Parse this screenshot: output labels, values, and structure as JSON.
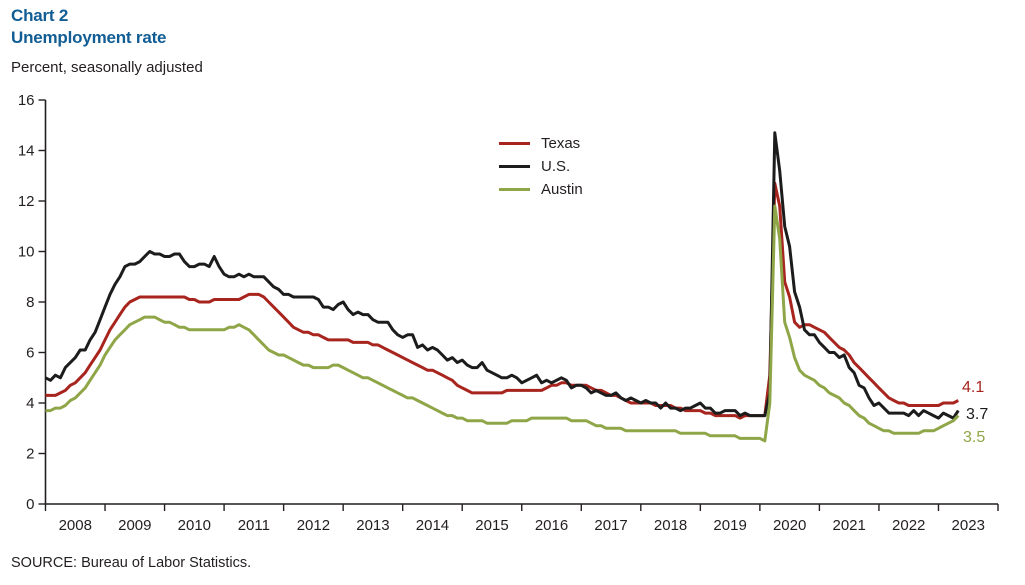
{
  "header": {
    "chart_number": "Chart 2",
    "title": "Unemployment rate",
    "subtitle": "Percent, seasonally adjusted"
  },
  "footer": {
    "source": "SOURCE: Bureau of Labor Statistics."
  },
  "colors": {
    "title_blue": "#115d94",
    "axis": "#231f20",
    "texas_red": "#a8241e",
    "us_black": "#1c1c1c",
    "austin_green": "#8fa648"
  },
  "chart_data": {
    "type": "line",
    "title": "Unemployment rate",
    "ylabel": "Percent, seasonally adjusted",
    "xlabel": "",
    "ylim": [
      0,
      16
    ],
    "y_ticks": [
      0,
      2,
      4,
      6,
      8,
      10,
      12,
      14,
      16
    ],
    "x_tick_years": [
      2008,
      2009,
      2010,
      2011,
      2012,
      2013,
      2014,
      2015,
      2016,
      2017,
      2018,
      2019,
      2020,
      2021,
      2022,
      2023
    ],
    "x_start": "2008-01",
    "x_frequency": "monthly",
    "grid": false,
    "legend_position": "inside-top-center",
    "series": [
      {
        "name": "Texas",
        "color": "#a8241e",
        "end_label": "4.1",
        "values": [
          4.3,
          4.3,
          4.3,
          4.4,
          4.5,
          4.7,
          4.8,
          5.0,
          5.2,
          5.5,
          5.8,
          6.1,
          6.5,
          6.9,
          7.2,
          7.5,
          7.8,
          8.0,
          8.1,
          8.2,
          8.2,
          8.2,
          8.2,
          8.2,
          8.2,
          8.2,
          8.2,
          8.2,
          8.2,
          8.1,
          8.1,
          8.0,
          8.0,
          8.0,
          8.1,
          8.1,
          8.1,
          8.1,
          8.1,
          8.1,
          8.2,
          8.3,
          8.3,
          8.3,
          8.2,
          8.0,
          7.8,
          7.6,
          7.4,
          7.2,
          7.0,
          6.9,
          6.8,
          6.8,
          6.7,
          6.7,
          6.6,
          6.5,
          6.5,
          6.5,
          6.5,
          6.5,
          6.4,
          6.4,
          6.4,
          6.4,
          6.3,
          6.3,
          6.2,
          6.1,
          6.0,
          5.9,
          5.8,
          5.7,
          5.6,
          5.5,
          5.4,
          5.3,
          5.3,
          5.2,
          5.1,
          5.0,
          4.9,
          4.7,
          4.6,
          4.5,
          4.4,
          4.4,
          4.4,
          4.4,
          4.4,
          4.4,
          4.4,
          4.5,
          4.5,
          4.5,
          4.5,
          4.5,
          4.5,
          4.5,
          4.5,
          4.6,
          4.7,
          4.7,
          4.8,
          4.8,
          4.7,
          4.7,
          4.7,
          4.7,
          4.6,
          4.5,
          4.5,
          4.4,
          4.3,
          4.3,
          4.2,
          4.1,
          4.0,
          4.0,
          4.0,
          4.0,
          4.0,
          3.9,
          3.9,
          3.9,
          3.9,
          3.8,
          3.8,
          3.7,
          3.7,
          3.7,
          3.7,
          3.6,
          3.6,
          3.5,
          3.5,
          3.5,
          3.5,
          3.5,
          3.4,
          3.5,
          3.5,
          3.5,
          3.5,
          3.5,
          5.1,
          12.7,
          11.8,
          8.8,
          8.2,
          7.2,
          7.0,
          7.1,
          7.1,
          7.0,
          6.9,
          6.8,
          6.6,
          6.4,
          6.2,
          6.1,
          5.9,
          5.6,
          5.4,
          5.2,
          5.0,
          4.8,
          4.6,
          4.4,
          4.2,
          4.1,
          4.0,
          4.0,
          3.9,
          3.9,
          3.9,
          3.9,
          3.9,
          3.9,
          3.9,
          4.0,
          4.0,
          4.0,
          4.1
        ]
      },
      {
        "name": "U.S.",
        "color": "#1c1c1c",
        "end_label": "3.7",
        "values": [
          5.0,
          4.9,
          5.1,
          5.0,
          5.4,
          5.6,
          5.8,
          6.1,
          6.1,
          6.5,
          6.8,
          7.3,
          7.8,
          8.3,
          8.7,
          9.0,
          9.4,
          9.5,
          9.5,
          9.6,
          9.8,
          10.0,
          9.9,
          9.9,
          9.8,
          9.8,
          9.9,
          9.9,
          9.6,
          9.4,
          9.4,
          9.5,
          9.5,
          9.4,
          9.8,
          9.4,
          9.1,
          9.0,
          9.0,
          9.1,
          9.0,
          9.1,
          9.0,
          9.0,
          9.0,
          8.8,
          8.6,
          8.5,
          8.3,
          8.3,
          8.2,
          8.2,
          8.2,
          8.2,
          8.2,
          8.1,
          7.8,
          7.8,
          7.7,
          7.9,
          8.0,
          7.7,
          7.5,
          7.6,
          7.5,
          7.5,
          7.3,
          7.2,
          7.2,
          7.2,
          6.9,
          6.7,
          6.6,
          6.7,
          6.7,
          6.2,
          6.3,
          6.1,
          6.2,
          6.1,
          5.9,
          5.7,
          5.8,
          5.6,
          5.7,
          5.5,
          5.4,
          5.4,
          5.6,
          5.3,
          5.2,
          5.1,
          5.0,
          5.0,
          5.1,
          5.0,
          4.8,
          4.9,
          5.0,
          5.1,
          4.8,
          4.9,
          4.8,
          4.9,
          5.0,
          4.9,
          4.6,
          4.7,
          4.7,
          4.6,
          4.4,
          4.5,
          4.4,
          4.3,
          4.3,
          4.4,
          4.2,
          4.1,
          4.2,
          4.1,
          4.0,
          4.1,
          4.0,
          4.0,
          3.8,
          4.0,
          3.8,
          3.8,
          3.7,
          3.8,
          3.8,
          3.9,
          4.0,
          3.8,
          3.8,
          3.6,
          3.6,
          3.7,
          3.7,
          3.7,
          3.5,
          3.6,
          3.5,
          3.5,
          3.5,
          3.5,
          4.4,
          14.7,
          13.2,
          11.0,
          10.2,
          8.4,
          7.8,
          6.9,
          6.7,
          6.7,
          6.4,
          6.2,
          6.0,
          6.0,
          5.8,
          5.9,
          5.4,
          5.2,
          4.7,
          4.6,
          4.2,
          3.9,
          4.0,
          3.8,
          3.6,
          3.6,
          3.6,
          3.6,
          3.5,
          3.7,
          3.5,
          3.7,
          3.6,
          3.5,
          3.4,
          3.6,
          3.5,
          3.4,
          3.7
        ]
      },
      {
        "name": "Austin",
        "color": "#8fa648",
        "end_label": "3.5",
        "values": [
          3.7,
          3.7,
          3.8,
          3.8,
          3.9,
          4.1,
          4.2,
          4.4,
          4.6,
          4.9,
          5.2,
          5.5,
          5.9,
          6.2,
          6.5,
          6.7,
          6.9,
          7.1,
          7.2,
          7.3,
          7.4,
          7.4,
          7.4,
          7.3,
          7.2,
          7.2,
          7.1,
          7.0,
          7.0,
          6.9,
          6.9,
          6.9,
          6.9,
          6.9,
          6.9,
          6.9,
          6.9,
          7.0,
          7.0,
          7.1,
          7.0,
          6.9,
          6.7,
          6.5,
          6.3,
          6.1,
          6.0,
          5.9,
          5.9,
          5.8,
          5.7,
          5.6,
          5.5,
          5.5,
          5.4,
          5.4,
          5.4,
          5.4,
          5.5,
          5.5,
          5.4,
          5.3,
          5.2,
          5.1,
          5.0,
          5.0,
          4.9,
          4.8,
          4.7,
          4.6,
          4.5,
          4.4,
          4.3,
          4.2,
          4.2,
          4.1,
          4.0,
          3.9,
          3.8,
          3.7,
          3.6,
          3.5,
          3.5,
          3.4,
          3.4,
          3.3,
          3.3,
          3.3,
          3.3,
          3.2,
          3.2,
          3.2,
          3.2,
          3.2,
          3.3,
          3.3,
          3.3,
          3.3,
          3.4,
          3.4,
          3.4,
          3.4,
          3.4,
          3.4,
          3.4,
          3.4,
          3.3,
          3.3,
          3.3,
          3.3,
          3.2,
          3.1,
          3.1,
          3.0,
          3.0,
          3.0,
          3.0,
          2.9,
          2.9,
          2.9,
          2.9,
          2.9,
          2.9,
          2.9,
          2.9,
          2.9,
          2.9,
          2.9,
          2.8,
          2.8,
          2.8,
          2.8,
          2.8,
          2.8,
          2.7,
          2.7,
          2.7,
          2.7,
          2.7,
          2.7,
          2.6,
          2.6,
          2.6,
          2.6,
          2.6,
          2.5,
          4.0,
          11.8,
          10.5,
          7.2,
          6.6,
          5.8,
          5.3,
          5.1,
          5.0,
          4.9,
          4.7,
          4.6,
          4.4,
          4.3,
          4.2,
          4.0,
          3.9,
          3.7,
          3.5,
          3.4,
          3.2,
          3.1,
          3.0,
          2.9,
          2.9,
          2.8,
          2.8,
          2.8,
          2.8,
          2.8,
          2.8,
          2.9,
          2.9,
          2.9,
          3.0,
          3.1,
          3.2,
          3.3,
          3.5
        ]
      }
    ]
  }
}
